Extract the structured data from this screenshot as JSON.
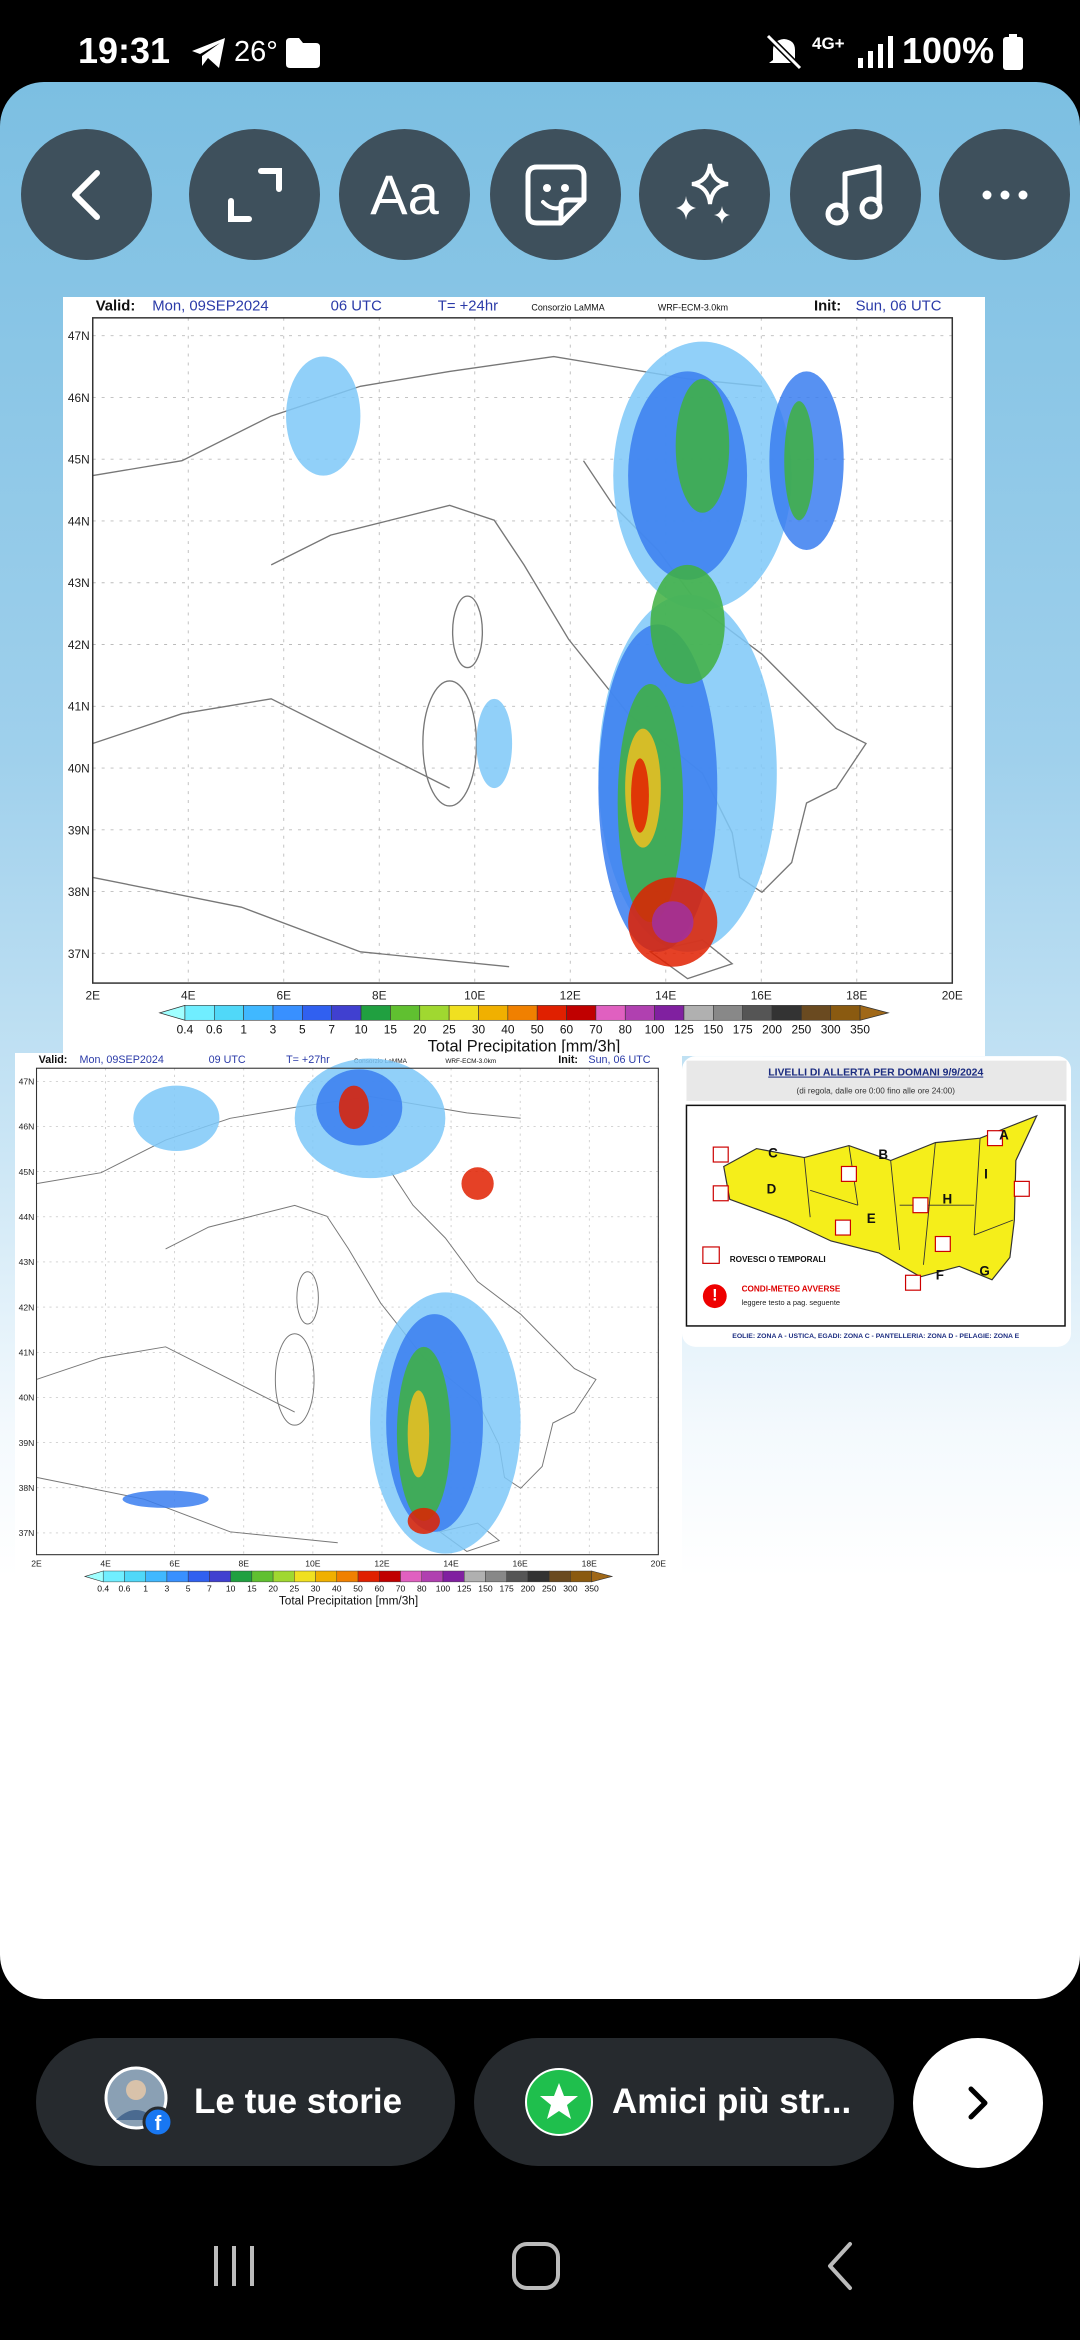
{
  "status_bar": {
    "time": "19:31",
    "temperature": "26°",
    "network": "4G+",
    "battery": "100%"
  },
  "toolbar": {
    "text_button": "Aa"
  },
  "maps": [
    {
      "valid_label": "Valid:",
      "valid_date": "Mon, 09SEP2024",
      "valid_hour": "06 UTC",
      "forecast_step": "T= +24hr",
      "source": "Consorzio LaMMA",
      "model": "WRF-ECM-3.0km",
      "init_label": "Init:",
      "init_date": "Sun, 06 UTC",
      "lat_labels": [
        "47N",
        "46N",
        "45N",
        "44N",
        "43N",
        "42N",
        "41N",
        "40N",
        "39N",
        "38N",
        "37N"
      ],
      "lon_labels": [
        "2E",
        "4E",
        "6E",
        "8E",
        "10E",
        "12E",
        "14E",
        "16E",
        "18E",
        "20E"
      ],
      "colorbar_labels": [
        "0.4",
        "0.6",
        "1",
        "3",
        "5",
        "7",
        "10",
        "15",
        "20",
        "25",
        "30",
        "40",
        "50",
        "60",
        "70",
        "80",
        "100",
        "125",
        "150",
        "175",
        "200",
        "250",
        "300",
        "350"
      ],
      "title": "Total Precipitation [mm/3h]"
    },
    {
      "valid_label": "Valid:",
      "valid_date": "Mon, 09SEP2024",
      "valid_hour": "09 UTC",
      "forecast_step": "T= +27hr",
      "source": "Consorzio LaMMA",
      "model": "WRF-ECM-3.0km",
      "init_label": "Init:",
      "init_date": "Sun, 06 UTC",
      "lat_labels": [
        "47N",
        "46N",
        "45N",
        "44N",
        "43N",
        "42N",
        "41N",
        "40N",
        "39N",
        "38N",
        "37N"
      ],
      "lon_labels": [
        "2E",
        "4E",
        "6E",
        "8E",
        "10E",
        "12E",
        "14E",
        "16E",
        "18E",
        "20E"
      ],
      "colorbar_labels": [
        "0.4",
        "0.6",
        "1",
        "3",
        "5",
        "7",
        "10",
        "15",
        "20",
        "25",
        "30",
        "40",
        "50",
        "60",
        "70",
        "80",
        "100",
        "125",
        "150",
        "175",
        "200",
        "250",
        "300",
        "350"
      ],
      "title": "Total Precipitation [mm/3h]"
    }
  ],
  "alert": {
    "title": "LIVELLI DI ALLERTA PER DOMANI 9/9/2024",
    "subtitle": "(di regola, dalle ore 0:00 fino alle ore 24:00)",
    "zones": [
      "A",
      "B",
      "C",
      "D",
      "E",
      "F",
      "G",
      "H",
      "I"
    ],
    "legend_storms": "ROVESCI O TEMPORALI",
    "legend_adverse": "CONDI-METEO AVVERSE",
    "legend_note": "leggere testo a pag. seguente",
    "footer": "EOLIE: ZONA A - USTICA, EGADI: ZONA C - PANTELLERIA: ZONA D - PELAGIE: ZONA E"
  },
  "bottom_bar": {
    "your_stories": "Le tue storie",
    "close_friends": "Amici più str..."
  }
}
